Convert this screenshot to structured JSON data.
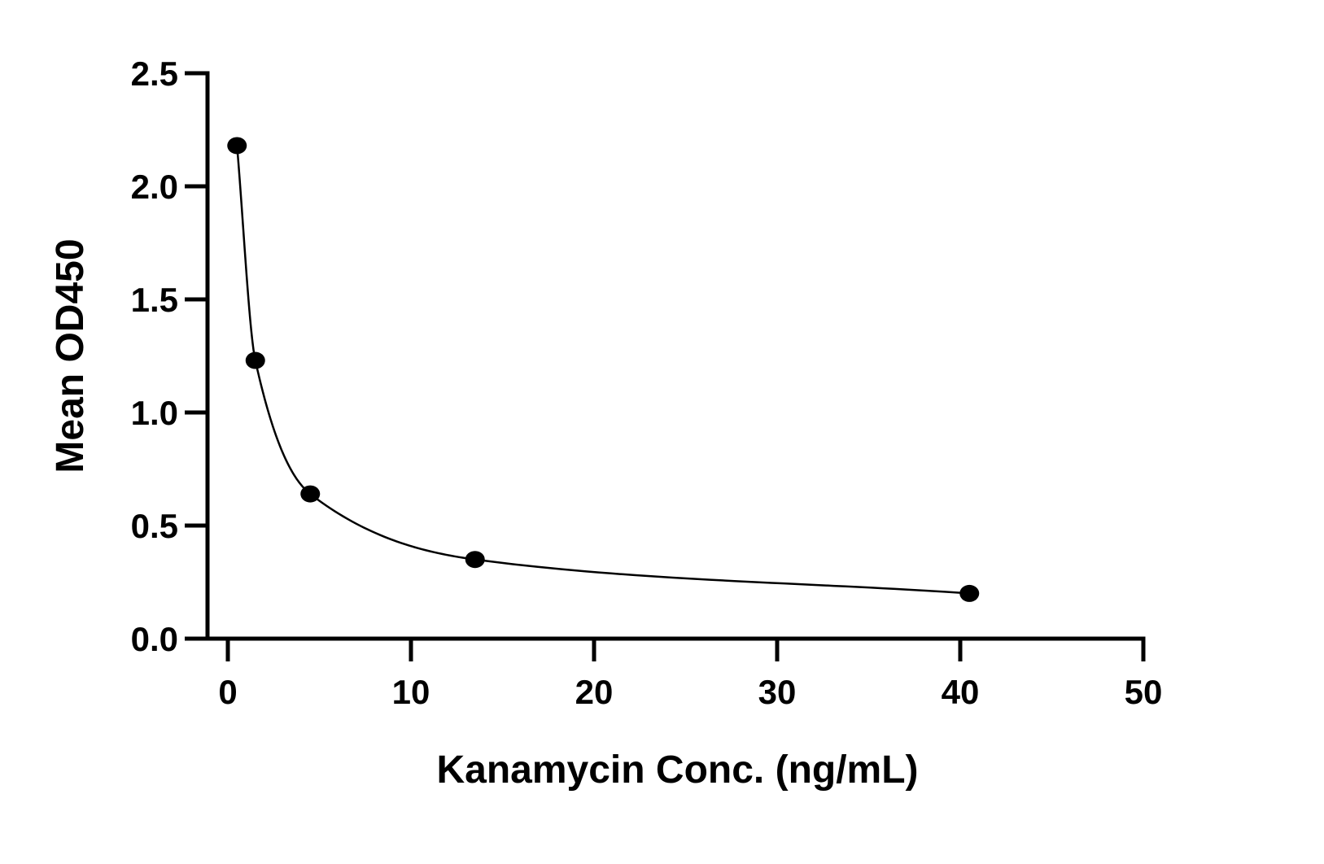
{
  "chart_data": {
    "type": "scatter",
    "xlabel": "Kanamycin Conc. (ng/mL)",
    "ylabel": "Mean OD450",
    "xlim": [
      0,
      50
    ],
    "ylim": [
      0,
      2.5
    ],
    "x_ticks": [
      0,
      10,
      20,
      30,
      40,
      50
    ],
    "y_ticks": [
      0.0,
      0.5,
      1.0,
      1.5,
      2.0,
      2.5
    ],
    "x_tick_labels": [
      "0",
      "10",
      "20",
      "30",
      "40",
      "50"
    ],
    "y_tick_labels": [
      "0.0",
      "0.5",
      "1.0",
      "1.5",
      "2.0",
      "2.5"
    ],
    "grid": false,
    "series": [
      {
        "points": [
          {
            "x": 0.5,
            "y": 2.18
          },
          {
            "x": 1.5,
            "y": 1.23
          },
          {
            "x": 4.5,
            "y": 0.64
          },
          {
            "x": 13.5,
            "y": 0.35
          },
          {
            "x": 40.5,
            "y": 0.2
          }
        ],
        "fit_curve": true,
        "color": "#000000"
      }
    ]
  }
}
